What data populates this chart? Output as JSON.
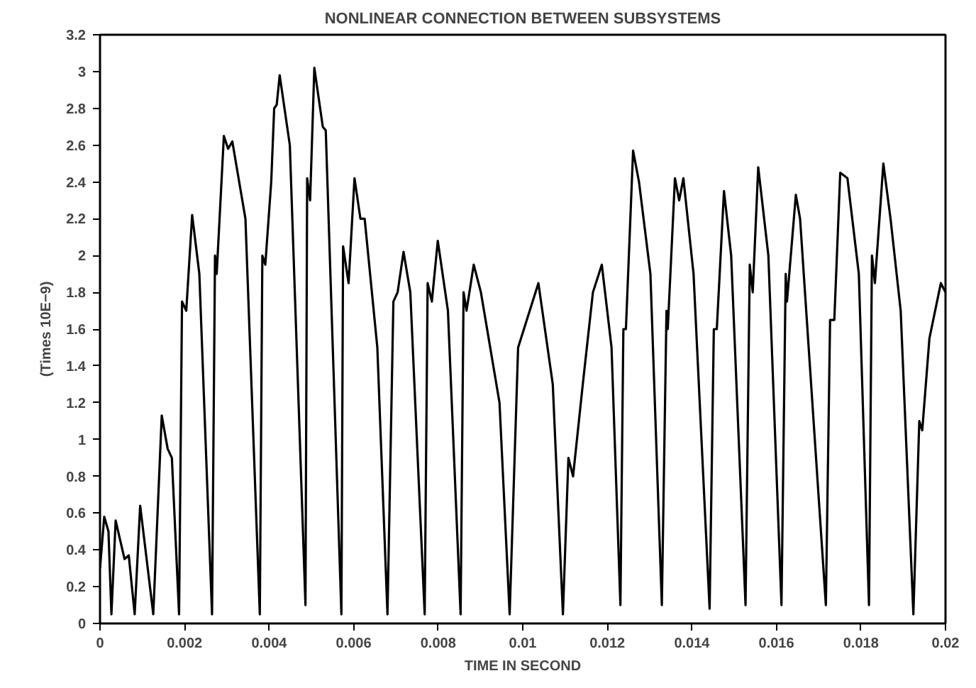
{
  "chart_data": {
    "type": "line",
    "title": "NONLINEAR CONNECTION BETWEEN SUBSYSTEMS",
    "xlabel": "TIME IN SECOND",
    "ylabel": "(Times 10E−9)",
    "xlim": [
      0,
      0.02
    ],
    "ylim": [
      0,
      3.2
    ],
    "xticks": [
      0,
      0.002,
      0.004,
      0.006,
      0.008,
      0.01,
      0.012,
      0.014,
      0.016,
      0.018,
      0.02
    ],
    "yticks": [
      0,
      0.2,
      0.4,
      0.6,
      0.8,
      1,
      1.2,
      1.4,
      1.6,
      1.8,
      2,
      2.2,
      2.4,
      2.6,
      2.8,
      3,
      3.2
    ],
    "grid": false,
    "marker": "none",
    "line_style": "solid",
    "series": [
      {
        "color": "#000000",
        "x": [
          0,
          0.0001,
          0.0002,
          0.00027,
          0.00037,
          0.00048,
          0.00058,
          0.00068,
          0.00082,
          0.00095,
          0.00126,
          0.00146,
          0.0016,
          0.0017,
          0.00187,
          0.00194,
          0.00204,
          0.00218,
          0.00235,
          0.00265,
          0.00272,
          0.00276,
          0.00293,
          0.00303,
          0.00313,
          0.00344,
          0.00378,
          0.00384,
          0.00391,
          0.00405,
          0.00412,
          0.00418,
          0.00425,
          0.00449,
          0.00486,
          0.0049,
          0.00497,
          0.00507,
          0.00527,
          0.00534,
          0.00571,
          0.00575,
          0.00588,
          0.00602,
          0.00616,
          0.00626,
          0.00656,
          0.0068,
          0.00694,
          0.00704,
          0.00718,
          0.00734,
          0.00768,
          0.00775,
          0.00785,
          0.00799,
          0.00823,
          0.00853,
          0.0086,
          0.00867,
          0.00884,
          0.00901,
          0.00945,
          0.00969,
          0.00989,
          0.01037,
          0.01071,
          0.01095,
          0.01108,
          0.01119,
          0.01142,
          0.01166,
          0.01187,
          0.0121,
          0.01231,
          0.01238,
          0.01244,
          0.01261,
          0.01275,
          0.01302,
          0.01329,
          0.0134,
          0.01343,
          0.0136,
          0.0137,
          0.0138,
          0.01404,
          0.01442,
          0.01452,
          0.01459,
          0.01476,
          0.01493,
          0.01527,
          0.01537,
          0.01544,
          0.01557,
          0.01581,
          0.01612,
          0.01622,
          0.01625,
          0.01646,
          0.01656,
          0.01717,
          0.01727,
          0.01737,
          0.01751,
          0.01768,
          0.01795,
          0.01819,
          0.01826,
          0.01833,
          0.01853,
          0.0187,
          0.01894,
          0.01924,
          0.01938,
          0.01945,
          0.01962,
          0.01989,
          0.02
        ],
        "values": [
          0.3,
          0.58,
          0.5,
          0.05,
          0.56,
          0.45,
          0.35,
          0.37,
          0.05,
          0.64,
          0.05,
          1.13,
          0.95,
          0.9,
          0.05,
          1.75,
          1.7,
          2.22,
          1.9,
          0.05,
          2.0,
          1.9,
          2.65,
          2.58,
          2.62,
          2.2,
          0.05,
          2.0,
          1.95,
          2.4,
          2.8,
          2.82,
          2.98,
          2.6,
          0.1,
          2.42,
          2.3,
          3.02,
          2.7,
          2.68,
          0.05,
          2.05,
          1.85,
          2.42,
          2.2,
          2.2,
          1.5,
          0.05,
          1.75,
          1.8,
          2.02,
          1.8,
          0.05,
          1.85,
          1.75,
          2.08,
          1.7,
          0.05,
          1.8,
          1.7,
          1.95,
          1.8,
          1.2,
          0.05,
          1.5,
          1.85,
          1.3,
          0.05,
          0.9,
          0.8,
          1.3,
          1.8,
          1.95,
          1.5,
          0.1,
          1.6,
          1.6,
          2.57,
          2.4,
          1.9,
          0.1,
          1.7,
          1.6,
          2.42,
          2.3,
          2.42,
          1.9,
          0.08,
          1.6,
          1.6,
          2.35,
          2.0,
          0.1,
          1.95,
          1.8,
          2.48,
          2.0,
          0.1,
          1.9,
          1.75,
          2.33,
          2.2,
          0.1,
          1.65,
          1.65,
          2.45,
          2.42,
          1.9,
          0.1,
          2.0,
          1.85,
          2.5,
          2.2,
          1.7,
          0.05,
          1.1,
          1.05,
          1.55,
          1.85,
          1.8
        ]
      }
    ]
  }
}
